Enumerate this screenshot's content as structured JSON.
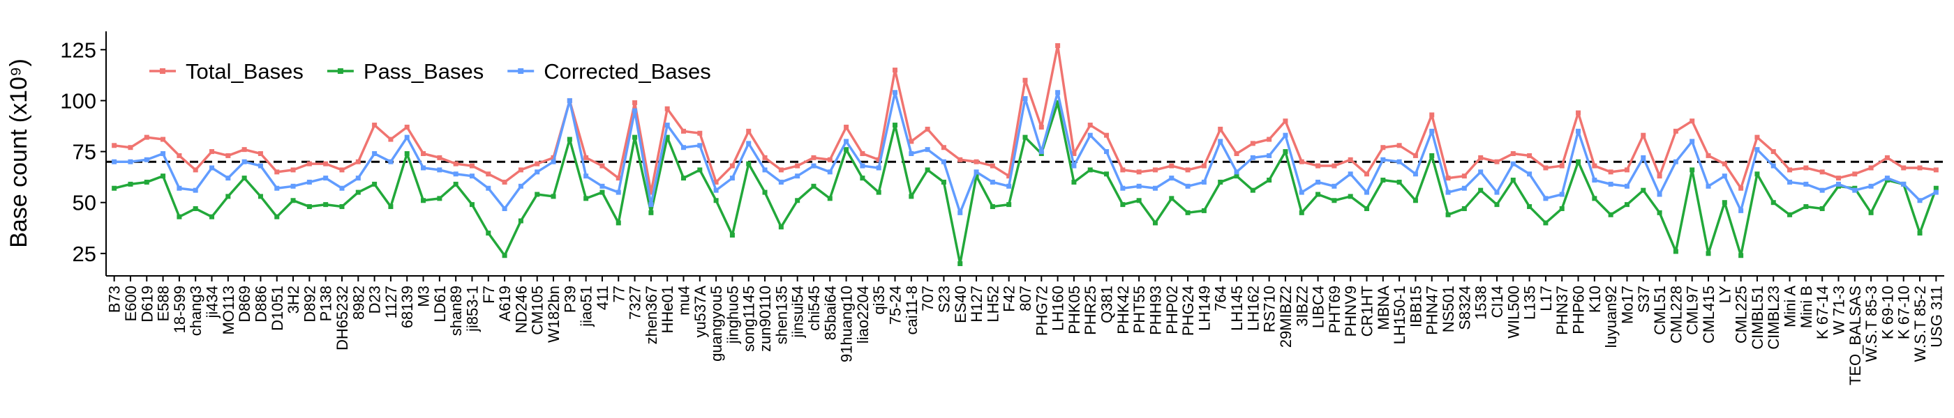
{
  "chart_data": {
    "type": "line",
    "y_label": "Base count (x10⁹)",
    "legend": "top-left",
    "hline": 70,
    "ylim": [
      14,
      134
    ],
    "yticks": [
      25,
      50,
      75,
      100,
      125
    ],
    "categories": [
      "B73",
      "E600",
      "D619",
      "E588",
      "18-599",
      "chang3",
      "ji434",
      "MO113",
      "D869",
      "D886",
      "D1051",
      "3H2",
      "D892",
      "P138",
      "DH65232",
      "8982",
      "D23",
      "1127",
      "68139",
      "M3",
      "LD61",
      "shan89",
      "ji853-1",
      "F7",
      "A619",
      "ND246",
      "CM105",
      "W182bn",
      "P39",
      "jiao51",
      "411",
      "77",
      "7327",
      "zhen367",
      "HHe01",
      "mu4",
      "yu537A",
      "guangyou5",
      "jinghuo5",
      "song1145",
      "zun90110",
      "shen135",
      "jinsui54",
      "chi545",
      "85bai64",
      "91huang10",
      "liao2204",
      "qi35",
      "75-24",
      "cai11-8",
      "707",
      "S23",
      "ES40",
      "H127",
      "LH52",
      "F42",
      "807",
      "PHG72",
      "LH160",
      "PHK05",
      "PHR25",
      "Q381",
      "PHK42",
      "PHT55",
      "PHH93",
      "PHP02",
      "PHG24",
      "LH149",
      "764",
      "LH145",
      "LH162",
      "RS710",
      "29MIBZ2",
      "3IBZ2",
      "LIBC4",
      "PHT69",
      "PHNV9",
      "CR1HT",
      "MBNA",
      "LH150-1",
      "IBB15",
      "PHN47",
      "NS501",
      "S8324",
      "1538",
      "CI14",
      "WIL500",
      "L135",
      "L17",
      "PHN37",
      "PHP60",
      "K10",
      "luyuan92",
      "Mo17",
      "S37",
      "CML51",
      "CML228",
      "CML97",
      "CML415",
      "LY",
      "CML225",
      "CIMBL51",
      "CIMBL23",
      "Mini A",
      "Mini B",
      "K 67-14",
      "W 71-3",
      "TEO_BALSAS",
      "W.S.T 85-3",
      "K 69-10",
      "K 67-10",
      "W.S.T 85-2",
      "USG 311"
    ],
    "series": [
      {
        "name": "Total_Bases",
        "color": "#f07470",
        "values": [
          78,
          77,
          82,
          81,
          73,
          66,
          75,
          73,
          76,
          74,
          65,
          66,
          69,
          69,
          66,
          70,
          88,
          81,
          87,
          74,
          72,
          69,
          68,
          64,
          60,
          66,
          69,
          72,
          100,
          72,
          68,
          62,
          99,
          55,
          96,
          85,
          84,
          60,
          68,
          85,
          72,
          66,
          68,
          72,
          71,
          87,
          74,
          71,
          115,
          80,
          86,
          77,
          71,
          70,
          68,
          63,
          110,
          87,
          127,
          74,
          88,
          83,
          66,
          65,
          66,
          68,
          66,
          68,
          86,
          74,
          79,
          81,
          90,
          70,
          68,
          68,
          71,
          64,
          77,
          78,
          73,
          93,
          62,
          63,
          72,
          70,
          74,
          73,
          67,
          68,
          94,
          68,
          65,
          66,
          83,
          63,
          85,
          90,
          73,
          69,
          57,
          82,
          75,
          66,
          67,
          65,
          62,
          64,
          67,
          72,
          67,
          67,
          66
        ]
      },
      {
        "name": "Pass_Bases",
        "color": "#22a83a",
        "values": [
          57,
          59,
          60,
          63,
          43,
          47,
          43,
          53,
          62,
          53,
          43,
          51,
          48,
          49,
          48,
          55,
          59,
          48,
          74,
          51,
          52,
          59,
          49,
          35,
          24,
          41,
          54,
          53,
          81,
          52,
          55,
          40,
          82,
          45,
          82,
          62,
          66,
          51,
          34,
          69,
          55,
          38,
          51,
          58,
          52,
          76,
          62,
          55,
          88,
          53,
          66,
          60,
          20,
          63,
          48,
          49,
          82,
          74,
          99,
          60,
          66,
          64,
          49,
          51,
          40,
          52,
          45,
          46,
          60,
          63,
          56,
          61,
          75,
          45,
          54,
          51,
          53,
          47,
          61,
          60,
          51,
          73,
          44,
          47,
          56,
          49,
          61,
          48,
          40,
          47,
          70,
          52,
          44,
          49,
          56,
          45,
          26,
          66,
          25,
          50,
          24,
          64,
          50,
          44,
          48,
          47,
          58,
          57,
          45,
          61,
          59,
          35,
          57
        ]
      },
      {
        "name": "Corrected_Bases",
        "color": "#619cff",
        "values": [
          70,
          70,
          71,
          74,
          57,
          56,
          67,
          62,
          70,
          68,
          57,
          58,
          60,
          62,
          57,
          62,
          74,
          70,
          82,
          67,
          66,
          64,
          63,
          57,
          47,
          58,
          65,
          70,
          100,
          63,
          58,
          55,
          95,
          49,
          88,
          77,
          78,
          56,
          62,
          79,
          66,
          60,
          63,
          68,
          65,
          80,
          68,
          67,
          104,
          74,
          76,
          70,
          45,
          65,
          60,
          58,
          101,
          75,
          104,
          68,
          83,
          75,
          57,
          58,
          57,
          62,
          58,
          60,
          80,
          65,
          72,
          73,
          83,
          55,
          60,
          58,
          64,
          55,
          71,
          70,
          64,
          85,
          55,
          57,
          65,
          55,
          69,
          64,
          52,
          54,
          85,
          61,
          59,
          58,
          72,
          54,
          70,
          80,
          58,
          63,
          46,
          76,
          68,
          60,
          59,
          56,
          59,
          56,
          58,
          62,
          59,
          51,
          55
        ]
      }
    ]
  }
}
